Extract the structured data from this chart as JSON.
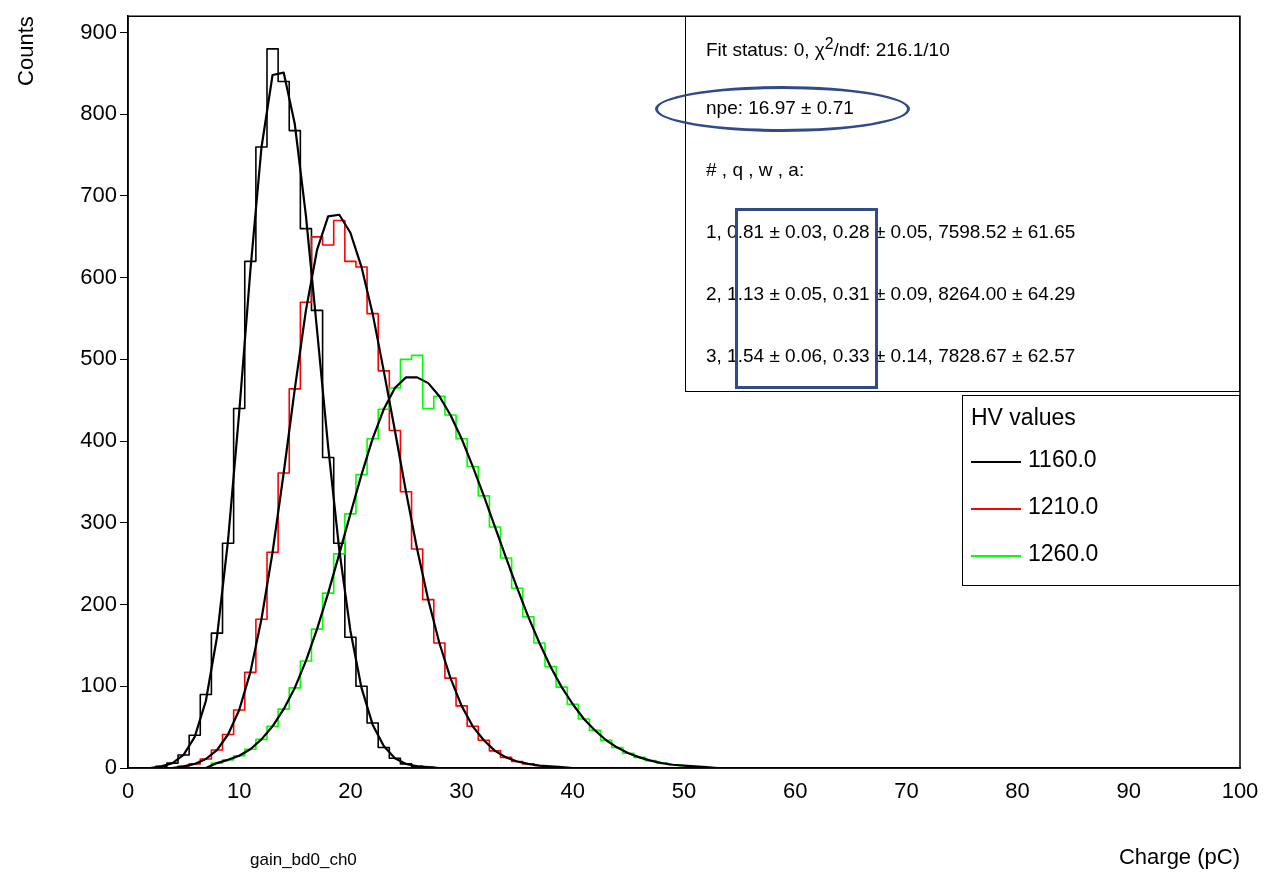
{
  "chart_data": {
    "type": "step",
    "xlabel": "Charge (pC)",
    "ylabel": "Counts",
    "legend_title": "HV values",
    "x": [
      0,
      1,
      2,
      3,
      4,
      5,
      6,
      7,
      8,
      9,
      10,
      11,
      12,
      13,
      14,
      15,
      16,
      17,
      18,
      19,
      20,
      21,
      22,
      23,
      24,
      25,
      26,
      27,
      28,
      29,
      30,
      31,
      32,
      33,
      34,
      35,
      36,
      37,
      38,
      39,
      40,
      41,
      42,
      43,
      44,
      45,
      46,
      47,
      48,
      49,
      50,
      51,
      52,
      53,
      100
    ],
    "series": [
      {
        "name": "1160.0",
        "color": "#000000",
        "values": [
          0,
          0,
          0,
          2,
          6,
          16,
          40,
          90,
          165,
          275,
          440,
          620,
          760,
          880,
          840,
          780,
          660,
          560,
          380,
          275,
          160,
          100,
          55,
          25,
          12,
          5,
          2,
          1,
          0,
          0,
          0,
          0,
          0,
          0,
          0,
          0,
          0,
          0,
          0,
          0,
          0,
          0,
          0,
          0,
          0,
          0,
          0,
          0,
          0,
          0,
          0,
          0,
          0,
          0,
          0
        ]
      },
      {
        "name": "1210.0",
        "color": "#ff0000",
        "values": [
          null,
          null,
          null,
          0,
          0,
          2,
          5,
          11,
          22,
          41,
          71,
          117,
          182,
          264,
          361,
          464,
          570,
          650,
          640,
          670,
          620,
          613,
          556,
          486,
          413,
          338,
          268,
          206,
          153,
          110,
          76,
          51,
          34,
          21,
          13,
          8,
          5,
          3,
          null,
          null,
          null,
          null,
          null,
          null,
          null,
          null,
          null,
          null,
          null,
          null,
          null,
          null,
          null,
          null,
          null
        ]
      },
      {
        "name": "1260.0",
        "color": "#00ff00",
        "values": [
          null,
          null,
          null,
          null,
          null,
          null,
          0,
          0,
          6,
          10,
          15,
          23,
          35,
          51,
          72,
          98,
          131,
          170,
          214,
          262,
          311,
          359,
          403,
          439,
          465,
          500,
          505,
          440,
          455,
          432,
          403,
          369,
          333,
          295,
          257,
          220,
          185,
          153,
          124,
          99,
          78,
          60,
          46,
          34,
          25,
          18,
          13,
          9,
          6,
          4,
          3,
          null,
          null,
          null,
          null
        ]
      },
      {
        "type": "line",
        "color": "#000000",
        "values": [
          0,
          0,
          0,
          2,
          6,
          16,
          38,
          82,
          160,
          279,
          435,
          608,
          759,
          848,
          851,
          788,
          676,
          536,
          393,
          267,
          168,
          98,
          53,
          27,
          12,
          5,
          2,
          1,
          0,
          0,
          0,
          0,
          0,
          0,
          0,
          0,
          0,
          0,
          0,
          0,
          0,
          0,
          0,
          0,
          0,
          0,
          0,
          0,
          0,
          0,
          0,
          0,
          0,
          0,
          0
        ]
      },
      {
        "type": "line",
        "color": "#000000",
        "values": [
          0,
          0,
          0,
          0,
          0,
          2,
          5,
          11,
          22,
          41,
          71,
          117,
          182,
          264,
          361,
          464,
          560,
          634,
          675,
          677,
          655,
          613,
          556,
          486,
          413,
          338,
          268,
          206,
          153,
          110,
          76,
          51,
          34,
          21,
          13,
          8,
          5,
          3,
          2,
          1,
          0,
          0,
          0,
          0,
          0,
          0,
          0,
          0,
          0,
          0,
          0,
          0,
          0,
          0,
          0
        ]
      },
      {
        "type": "line",
        "color": "#000000",
        "values": [
          0,
          0,
          0,
          0,
          0,
          0,
          0,
          0,
          6,
          10,
          15,
          23,
          35,
          51,
          72,
          98,
          131,
          170,
          214,
          262,
          311,
          359,
          403,
          439,
          465,
          478,
          478,
          471,
          455,
          432,
          403,
          369,
          333,
          295,
          257,
          220,
          185,
          153,
          124,
          99,
          78,
          60,
          46,
          34,
          25,
          18,
          13,
          9,
          6,
          4,
          3,
          2,
          1,
          0,
          0
        ]
      }
    ],
    "xlim": [
      0,
      100
    ],
    "ylim": [
      0,
      920
    ],
    "xticks": [
      0,
      10,
      20,
      30,
      40,
      50,
      60,
      70,
      80,
      90,
      100
    ],
    "yticks": [
      0,
      100,
      200,
      300,
      400,
      500,
      600,
      700,
      800,
      900
    ],
    "grid": false,
    "legend": "right",
    "marker": "none",
    "line_style": "solid",
    "annotations": [
      "Fit status: 0, χ$^{2}$/ndf: 216.1/10",
      "npe: 16.97 ± 0.71",
      "# , q , w , a:",
      "1, 0.81 ± 0.03, 0.28 ± 0.05, 7598.52 ± 61.65",
      "2, 1.13 ± 0.05, 0.31 ± 0.09, 8264.00 ± 64.29",
      "3, 1.54 ± 0.06, 0.33 ± 0.14, 7828.67 ± 62.57",
      "gain_bd0_ch0"
    ]
  }
}
